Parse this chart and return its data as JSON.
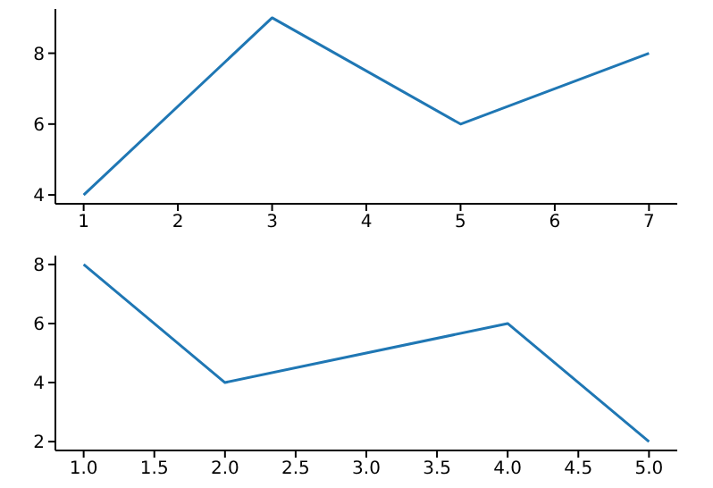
{
  "chart_data": [
    {
      "type": "line",
      "x": [
        1,
        3,
        5,
        7
      ],
      "series": [
        {
          "color": "#1f77b4",
          "values": [
            4,
            9,
            6,
            8
          ]
        }
      ],
      "xlim": [
        0.7,
        7.3
      ],
      "ylim": [
        3.75,
        9.25
      ],
      "xticks": [
        1,
        2,
        3,
        4,
        5,
        6,
        7
      ],
      "yticks": [
        4,
        6,
        8
      ],
      "marker": "none",
      "line_style": "solid"
    },
    {
      "type": "line",
      "x": [
        1,
        2,
        4,
        5
      ],
      "series": [
        {
          "color": "#1f77b4",
          "values": [
            8,
            4,
            6,
            2
          ]
        }
      ],
      "xlim": [
        0.8,
        5.2
      ],
      "ylim": [
        1.7,
        8.3
      ],
      "xticks": [
        {
          "value": 1,
          "label": "1.0"
        },
        {
          "value": 1.5,
          "label": "1.5"
        },
        {
          "value": 2,
          "label": "2.0"
        },
        {
          "value": 2.5,
          "label": "2.5"
        },
        {
          "value": 3,
          "label": "3.0"
        },
        {
          "value": 3.5,
          "label": "3.5"
        },
        {
          "value": 4,
          "label": "4.0"
        },
        {
          "value": 4.5,
          "label": "4.5"
        },
        {
          "value": 5,
          "label": "5.0"
        }
      ],
      "yticks": [
        2,
        4,
        6,
        8
      ],
      "marker": "none",
      "line_style": "solid"
    }
  ]
}
